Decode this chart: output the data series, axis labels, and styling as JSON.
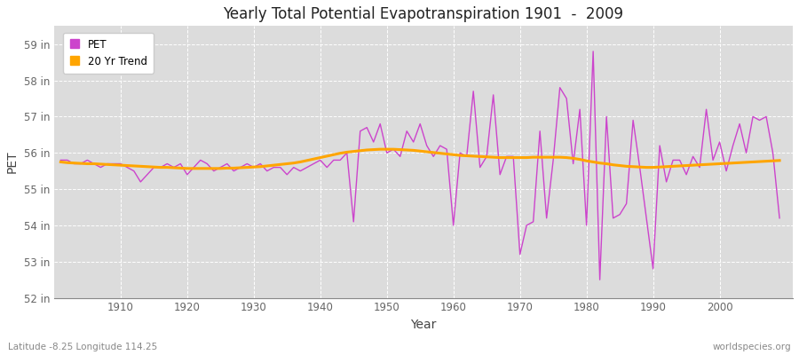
{
  "title": "Yearly Total Potential Evapotranspiration 1901  -  2009",
  "xlabel": "Year",
  "ylabel": "PET",
  "subtitle_left": "Latitude -8.25 Longitude 114.25",
  "subtitle_right": "worldspecies.org",
  "pet_color": "#CC44CC",
  "trend_color": "#FFA500",
  "background_color": "#FFFFFF",
  "plot_bg_color": "#DCDCDC",
  "ylim": [
    52,
    59.5
  ],
  "yticks": [
    52,
    53,
    54,
    55,
    56,
    57,
    58,
    59
  ],
  "ytick_labels": [
    "52 in",
    "53 in",
    "54 in",
    "55 in",
    "56 in",
    "57 in",
    "58 in",
    "59 in"
  ],
  "xticks": [
    1910,
    1920,
    1930,
    1940,
    1950,
    1960,
    1970,
    1980,
    1990,
    2000
  ],
  "years": [
    1901,
    1902,
    1903,
    1904,
    1905,
    1906,
    1907,
    1908,
    1909,
    1910,
    1911,
    1912,
    1913,
    1914,
    1915,
    1916,
    1917,
    1918,
    1919,
    1920,
    1921,
    1922,
    1923,
    1924,
    1925,
    1926,
    1927,
    1928,
    1929,
    1930,
    1931,
    1932,
    1933,
    1934,
    1935,
    1936,
    1937,
    1938,
    1939,
    1940,
    1941,
    1942,
    1943,
    1944,
    1945,
    1946,
    1947,
    1948,
    1949,
    1950,
    1951,
    1952,
    1953,
    1954,
    1955,
    1956,
    1957,
    1958,
    1959,
    1960,
    1961,
    1962,
    1963,
    1964,
    1965,
    1966,
    1967,
    1968,
    1969,
    1970,
    1971,
    1972,
    1973,
    1974,
    1975,
    1976,
    1977,
    1978,
    1979,
    1980,
    1981,
    1982,
    1983,
    1984,
    1985,
    1986,
    1987,
    1988,
    1989,
    1990,
    1991,
    1992,
    1993,
    1994,
    1995,
    1996,
    1997,
    1998,
    1999,
    2000,
    2001,
    2002,
    2003,
    2004,
    2005,
    2006,
    2007,
    2008,
    2009
  ],
  "pet_values": [
    55.8,
    55.8,
    55.7,
    55.7,
    55.8,
    55.7,
    55.6,
    55.7,
    55.7,
    55.7,
    55.6,
    55.5,
    55.2,
    55.4,
    55.6,
    55.6,
    55.7,
    55.6,
    55.7,
    55.4,
    55.6,
    55.8,
    55.7,
    55.5,
    55.6,
    55.7,
    55.5,
    55.6,
    55.7,
    55.6,
    55.7,
    55.5,
    55.6,
    55.6,
    55.4,
    55.6,
    55.5,
    55.6,
    55.7,
    55.8,
    55.6,
    55.8,
    55.8,
    56.0,
    54.1,
    56.6,
    56.7,
    56.3,
    56.8,
    56.0,
    56.1,
    55.9,
    56.6,
    56.3,
    56.8,
    56.2,
    55.9,
    56.2,
    56.1,
    54.0,
    56.0,
    55.9,
    57.7,
    55.6,
    55.9,
    57.6,
    55.4,
    55.9,
    55.9,
    53.2,
    54.0,
    54.1,
    56.6,
    54.2,
    55.8,
    57.8,
    57.5,
    55.7,
    57.2,
    54.0,
    58.8,
    52.5,
    57.0,
    54.2,
    54.3,
    54.6,
    56.9,
    55.6,
    54.2,
    52.8,
    56.2,
    55.2,
    55.8,
    55.8,
    55.4,
    55.9,
    55.6,
    57.2,
    55.8,
    56.3,
    55.5,
    56.2,
    56.8,
    56.0,
    57.0,
    56.9,
    57.0,
    56.0,
    54.2
  ],
  "trend_values": [
    55.75,
    55.73,
    55.72,
    55.71,
    55.7,
    55.7,
    55.69,
    55.68,
    55.67,
    55.66,
    55.65,
    55.64,
    55.63,
    55.62,
    55.61,
    55.6,
    55.6,
    55.59,
    55.58,
    55.57,
    55.57,
    55.57,
    55.57,
    55.57,
    55.57,
    55.58,
    55.58,
    55.59,
    55.6,
    55.61,
    55.62,
    55.64,
    55.66,
    55.68,
    55.7,
    55.72,
    55.75,
    55.79,
    55.83,
    55.87,
    55.91,
    55.95,
    55.99,
    56.02,
    56.04,
    56.06,
    56.08,
    56.09,
    56.1,
    56.1,
    56.1,
    56.09,
    56.08,
    56.07,
    56.05,
    56.03,
    56.01,
    55.99,
    55.97,
    55.95,
    55.93,
    55.92,
    55.91,
    55.9,
    55.89,
    55.88,
    55.87,
    55.87,
    55.87,
    55.87,
    55.87,
    55.88,
    55.88,
    55.88,
    55.88,
    55.88,
    55.87,
    55.85,
    55.82,
    55.78,
    55.75,
    55.72,
    55.7,
    55.67,
    55.65,
    55.63,
    55.62,
    55.61,
    55.6,
    55.6,
    55.61,
    55.62,
    55.63,
    55.64,
    55.65,
    55.66,
    55.67,
    55.68,
    55.69,
    55.7,
    55.71,
    55.72,
    55.73,
    55.74,
    55.75,
    55.76,
    55.77,
    55.78,
    55.79
  ]
}
